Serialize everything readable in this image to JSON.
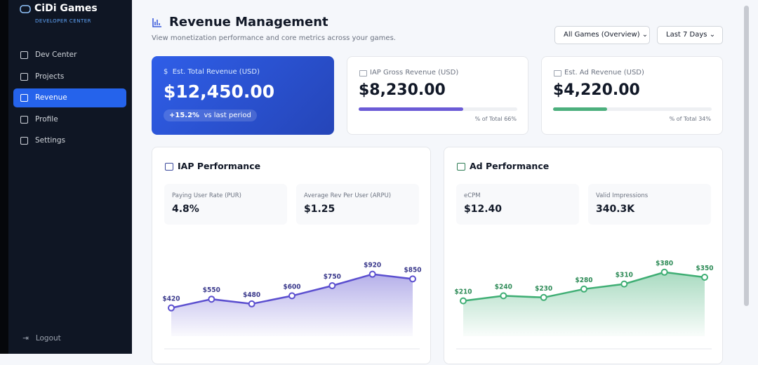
{
  "sidebar": {
    "brand": "CiDi Games",
    "subtitle": "DEVELOPER CENTER",
    "nav": [
      {
        "label": "Dev Center",
        "active": false
      },
      {
        "label": "Projects",
        "active": false
      },
      {
        "label": "Revenue",
        "active": true
      },
      {
        "label": "Profile",
        "active": false
      },
      {
        "label": "Settings",
        "active": false
      }
    ],
    "logout": "Logout"
  },
  "header": {
    "title": "Revenue Management",
    "subtitle": "View monetization performance and core metrics across your games.",
    "filters": [
      "All Games (Overview)",
      "Last 7 Days"
    ]
  },
  "kpis": [
    {
      "label": "Est. Total Revenue (USD)",
      "value": "$12,450.00",
      "change": "+15.2%",
      "change_note": "vs last period"
    },
    {
      "label": "IAP Gross Revenue (USD)",
      "value": "$8,230.00",
      "share": 66,
      "share_label": "% of Total 66%",
      "color": "#6b5bd6"
    },
    {
      "label": "Est. Ad Revenue (USD)",
      "value": "$4,220.00",
      "share": 34,
      "share_label": "% of Total 34%",
      "color": "#4caf7d"
    }
  ],
  "panels": [
    {
      "title": "IAP Performance",
      "metrics": [
        {
          "label": "Paying User Rate (PUR)",
          "value": "4.8%"
        },
        {
          "label": "Average Rev Per User (ARPU)",
          "value": "$1.25"
        }
      ],
      "chart_data": {
        "type": "line",
        "values": [
          420,
          550,
          480,
          600,
          750,
          920,
          850
        ],
        "value_labels": [
          "$420",
          "$550",
          "$480",
          "$600",
          "$750",
          "$920",
          "$850"
        ],
        "color": "#5b4fcf",
        "ylim": [
          0,
          1000
        ]
      }
    },
    {
      "title": "Ad Performance",
      "metrics": [
        {
          "label": "eCPM",
          "value": "$12.40"
        },
        {
          "label": "Valid Impressions",
          "value": "340.3K"
        }
      ],
      "chart_data": {
        "type": "line",
        "values": [
          210,
          240,
          230,
          280,
          310,
          380,
          350
        ],
        "value_labels": [
          "$210",
          "$240",
          "$230",
          "$280",
          "$310",
          "$380",
          "$350"
        ],
        "color": "#3fae74",
        "ylim": [
          0,
          400
        ]
      }
    }
  ]
}
